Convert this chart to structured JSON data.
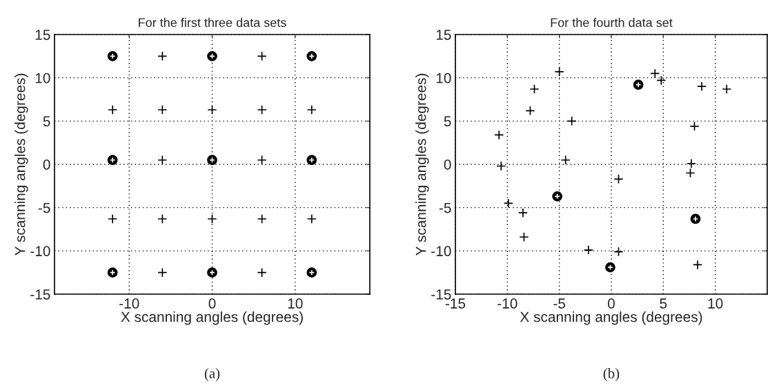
{
  "chart_data": [
    {
      "type": "scatter",
      "title": "For the first three data sets",
      "xlabel": "X scanning angles (degrees)",
      "ylabel": "Y scanning angles (degrees)",
      "xlim": [
        -19,
        19
      ],
      "ylim": [
        -15,
        15
      ],
      "xticks": [
        -10,
        0,
        10
      ],
      "yticks": [
        -15,
        -10,
        -5,
        0,
        5,
        10,
        15
      ],
      "grid": true,
      "annotations": [
        "(a)"
      ],
      "series": [
        {
          "color": "#000000",
          "marker": "cross",
          "x": [
            -6,
            6,
            -12,
            -6,
            0,
            6,
            12,
            -6,
            6,
            -12,
            -6,
            0,
            6,
            12,
            -6,
            6
          ],
          "values": [
            12.5,
            12.5,
            6.3,
            6.3,
            6.3,
            6.3,
            6.3,
            0.5,
            0.5,
            -6.3,
            -6.3,
            -6.3,
            -6.3,
            -6.3,
            -12.5,
            -12.5
          ]
        },
        {
          "color": "#000000",
          "marker": "circle",
          "x": [
            -12,
            0,
            12,
            -12,
            0,
            12,
            -12,
            0,
            12
          ],
          "values": [
            12.5,
            12.5,
            12.5,
            0.5,
            0.5,
            0.5,
            -12.5,
            -12.5,
            -12.5
          ]
        }
      ]
    },
    {
      "type": "scatter",
      "title": "For the fourth data set",
      "xlabel": "X scanning angles (degrees)",
      "ylabel": "Y scanning angles (degrees)",
      "xlim": [
        -15,
        15
      ],
      "ylim": [
        -15,
        15
      ],
      "xticks": [
        -15,
        -10,
        -5,
        0,
        5,
        10
      ],
      "yticks": [
        -15,
        -10,
        -5,
        0,
        5,
        10,
        15
      ],
      "grid": true,
      "annotations": [
        "(b)"
      ],
      "series": [
        {
          "color": "#000000",
          "marker": "cross",
          "x": [
            -5.0,
            -7.4,
            -7.8,
            -3.8,
            -10.8,
            -10.6,
            -4.4,
            -9.9,
            -8.5,
            -8.4,
            -2.2,
            0.7,
            0.7,
            4.2,
            4.8,
            8.7,
            11.1,
            8.0,
            7.7,
            7.6,
            8.3
          ],
          "values": [
            10.7,
            8.7,
            6.2,
            5.0,
            3.4,
            -0.2,
            0.5,
            -4.5,
            -5.6,
            -8.4,
            -9.9,
            -10.1,
            -1.7,
            10.5,
            9.7,
            9.0,
            8.7,
            4.4,
            0.1,
            -1.0,
            -11.6
          ]
        },
        {
          "color": "#000000",
          "marker": "circle",
          "x": [
            2.6,
            -5.2,
            8.1,
            -0.1
          ],
          "values": [
            9.2,
            -3.7,
            -6.3,
            -11.9
          ]
        }
      ]
    }
  ]
}
